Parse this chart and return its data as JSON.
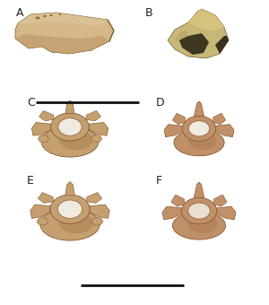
{
  "background_color": "#f5f5f5",
  "labels": [
    "A",
    "B",
    "C",
    "D",
    "E",
    "F"
  ],
  "label_fontsize": 9,
  "scale_bar_color": "#111111",
  "scale_bar_lw": 2.0,
  "fig_width": 3.0,
  "fig_height": 3.4,
  "bone_color_light": "#d4b88a",
  "bone_color_mid": "#c0a070",
  "bone_color_dark": "#8a6030",
  "bone_color_shadow": "#6a4820",
  "bg_white": "#ffffff"
}
